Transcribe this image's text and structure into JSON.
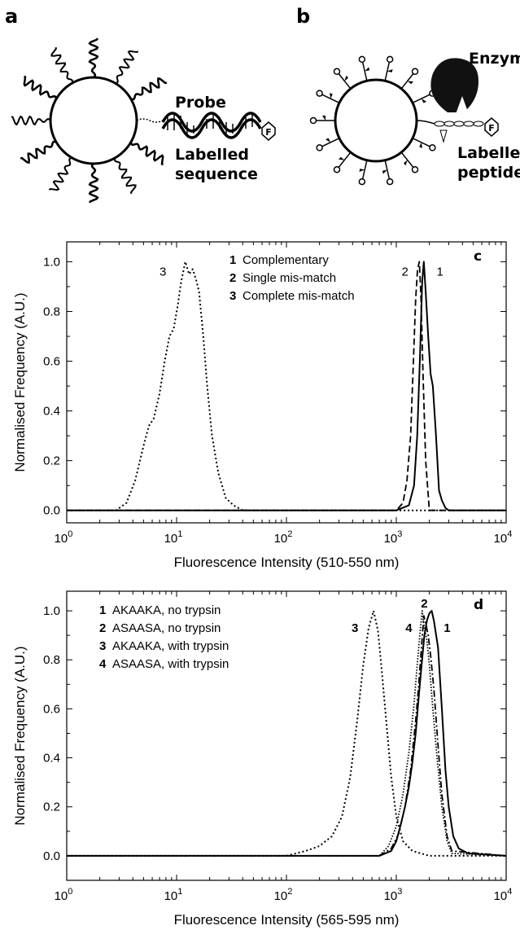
{
  "schematic": {
    "panel_a": {
      "letter": "a",
      "probe_label": "Probe",
      "sequence_label_1": "Labelled",
      "sequence_label_2": "sequence",
      "fluor_mark": "F"
    },
    "panel_b": {
      "letter": "b",
      "enzyme_label": "Enzyme",
      "peptide_label_1": "Labelled",
      "peptide_label_2": "peptide",
      "fluor_mark": "F"
    }
  },
  "chart_data": [
    {
      "type": "line",
      "panel": "c",
      "xlabel": "Fluorescence Intensity (510-550 nm)",
      "ylabel": "Normalised Frequency (A.U.)",
      "xscale": "log",
      "xlim": [
        1,
        10000
      ],
      "ylim": [
        -0.05,
        1.08
      ],
      "x_ticks": [
        {
          "base": "10",
          "exp": "0"
        },
        {
          "base": "10",
          "exp": "1"
        },
        {
          "base": "10",
          "exp": "2"
        },
        {
          "base": "10",
          "exp": "3"
        },
        {
          "base": "10",
          "exp": "4"
        }
      ],
      "y_ticks": [
        "0.0",
        "0.2",
        "0.4",
        "0.6",
        "0.8",
        "1.0"
      ],
      "legend_position": "top-center",
      "legend": [
        {
          "num": "1",
          "text": "Complementary"
        },
        {
          "num": "2",
          "text": "Single mis-match"
        },
        {
          "num": "3",
          "text": "Complete mis-match"
        }
      ],
      "series": [
        {
          "name": "1",
          "style": "solid",
          "x": [
            1,
            1000,
            1300,
            1450,
            1550,
            1650,
            1720,
            1780,
            1850,
            1950,
            2050,
            2150,
            2300,
            2450,
            2600,
            2800,
            3000,
            10000
          ],
          "y": [
            0,
            0,
            0.02,
            0.1,
            0.3,
            0.65,
            0.92,
            1.0,
            0.88,
            0.7,
            0.55,
            0.5,
            0.3,
            0.08,
            0.04,
            0.01,
            0,
            0
          ]
        },
        {
          "name": "2",
          "style": "dashed",
          "x": [
            1,
            1000,
            1150,
            1250,
            1350,
            1430,
            1500,
            1560,
            1620,
            1680,
            1750,
            1850,
            2000,
            10000
          ],
          "y": [
            0,
            0,
            0.03,
            0.12,
            0.3,
            0.6,
            0.85,
            0.97,
            1.0,
            0.85,
            0.55,
            0.2,
            0,
            0
          ]
        },
        {
          "name": "3",
          "style": "dotted",
          "x": [
            1,
            2.8,
            3.5,
            4.2,
            5,
            5.6,
            6.2,
            7,
            7.8,
            8.6,
            9.4,
            10.2,
            11,
            12,
            13,
            14,
            15,
            16,
            17.5,
            19,
            21,
            24,
            28,
            33,
            40,
            10000
          ],
          "y": [
            0,
            0,
            0.03,
            0.12,
            0.26,
            0.34,
            0.37,
            0.47,
            0.6,
            0.7,
            0.73,
            0.82,
            0.92,
            1.0,
            0.95,
            0.97,
            0.93,
            0.88,
            0.7,
            0.5,
            0.3,
            0.15,
            0.05,
            0.02,
            0,
            0
          ]
        }
      ],
      "curve_labels": [
        {
          "text": "3",
          "x": 7.5,
          "y": 0.96
        },
        {
          "text": "2",
          "x": 1200,
          "y": 0.96
        },
        {
          "text": "1",
          "x": 2500,
          "y": 0.96
        }
      ]
    },
    {
      "type": "line",
      "panel": "d",
      "xlabel": "Fluorescence Intensity (565-595 nm)",
      "ylabel": "Normalised Frequency (A.U.)",
      "xscale": "log",
      "xlim": [
        1,
        10000
      ],
      "ylim": [
        -0.1,
        1.08
      ],
      "x_ticks": [
        {
          "base": "10",
          "exp": "0"
        },
        {
          "base": "10",
          "exp": "1"
        },
        {
          "base": "10",
          "exp": "2"
        },
        {
          "base": "10",
          "exp": "3"
        },
        {
          "base": "10",
          "exp": "4"
        }
      ],
      "y_ticks": [
        "0.0",
        "0.2",
        "0.4",
        "0.6",
        "0.8",
        "1.0"
      ],
      "legend_position": "top-left",
      "legend": [
        {
          "num": "1",
          "text": "AKAAKA, no trypsin"
        },
        {
          "num": "2",
          "text": "ASAASA, no trypsin"
        },
        {
          "num": "3",
          "text": "AKAAKA, with trypsin"
        },
        {
          "num": "4",
          "text": "ASAASA, with trypsin"
        }
      ],
      "series": [
        {
          "name": "1",
          "style": "solid",
          "x": [
            1,
            700,
            900,
            1000,
            1100,
            1200,
            1300,
            1400,
            1500,
            1600,
            1700,
            1800,
            1900,
            2000,
            2100,
            2200,
            2400,
            2600,
            2800,
            3000,
            3300,
            3700,
            4500,
            10000
          ],
          "y": [
            0,
            0,
            0.02,
            0.06,
            0.13,
            0.2,
            0.28,
            0.38,
            0.5,
            0.65,
            0.78,
            0.9,
            0.96,
            0.99,
            1.0,
            0.96,
            0.85,
            0.6,
            0.35,
            0.2,
            0.08,
            0.03,
            0.01,
            0
          ]
        },
        {
          "name": "2",
          "style": "dashdot",
          "x": [
            1,
            700,
            900,
            1050,
            1200,
            1350,
            1500,
            1600,
            1700,
            1780,
            1850,
            1950,
            2050,
            2200,
            2400,
            2600,
            2900,
            3200,
            10000
          ],
          "y": [
            0,
            0,
            0.03,
            0.09,
            0.2,
            0.35,
            0.55,
            0.7,
            0.86,
            0.98,
            0.95,
            0.9,
            0.82,
            0.68,
            0.45,
            0.25,
            0.08,
            0.02,
            0
          ]
        },
        {
          "name": "3",
          "style": "dotted",
          "x": [
            1,
            100,
            150,
            200,
            260,
            320,
            380,
            440,
            500,
            560,
            620,
            680,
            740,
            820,
            900,
            1000,
            1150,
            1400,
            2000,
            10000
          ],
          "y": [
            0,
            0,
            0.02,
            0.04,
            0.08,
            0.16,
            0.32,
            0.55,
            0.78,
            0.93,
            1.0,
            0.92,
            0.75,
            0.52,
            0.32,
            0.16,
            0.06,
            0.02,
            0,
            0
          ]
        },
        {
          "name": "4",
          "style": "densedot",
          "x": [
            1,
            700,
            850,
            1000,
            1150,
            1300,
            1450,
            1550,
            1650,
            1720,
            1800,
            1900,
            2000,
            2150,
            2350,
            2600,
            2900,
            3200,
            10000
          ],
          "y": [
            0,
            0,
            0.04,
            0.12,
            0.25,
            0.42,
            0.62,
            0.78,
            0.92,
            1.0,
            0.93,
            0.88,
            0.78,
            0.6,
            0.4,
            0.2,
            0.06,
            0.01,
            0
          ]
        }
      ],
      "curve_labels": [
        {
          "text": "3",
          "x": 420,
          "y": 0.93
        },
        {
          "text": "2",
          "x": 1800,
          "y": 1.03
        },
        {
          "text": "4",
          "x": 1300,
          "y": 0.93
        },
        {
          "text": "1",
          "x": 2900,
          "y": 0.93
        }
      ]
    }
  ]
}
